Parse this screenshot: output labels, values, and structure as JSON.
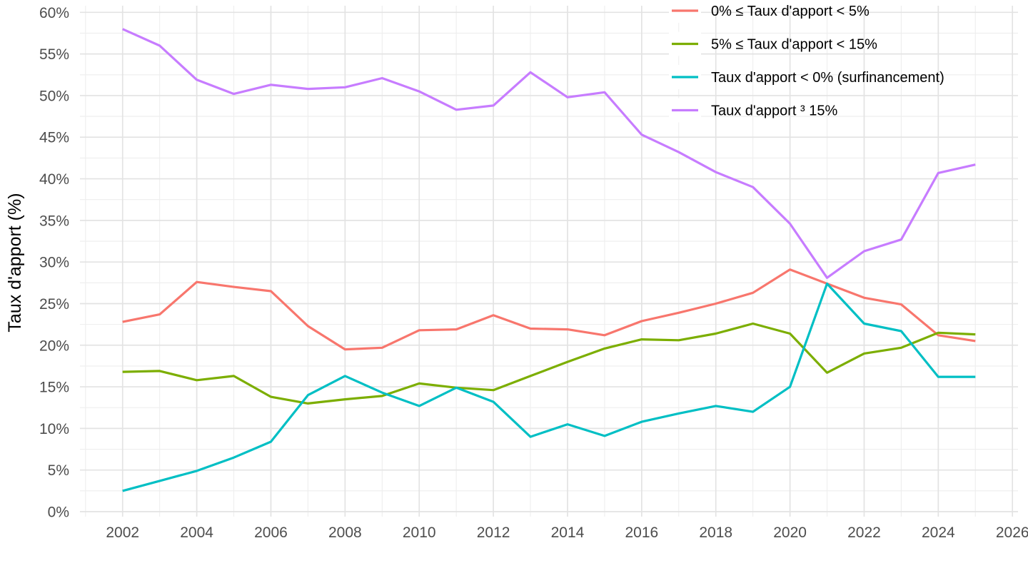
{
  "chart_data": {
    "type": "line",
    "title": "",
    "xlabel": "",
    "ylabel": "Taux d'apport (%)",
    "x": [
      2002,
      2003,
      2004,
      2005,
      2006,
      2007,
      2008,
      2009,
      2010,
      2011,
      2012,
      2013,
      2014,
      2015,
      2016,
      2017,
      2018,
      2019,
      2020,
      2021,
      2022,
      2023,
      2024,
      2025
    ],
    "series": [
      {
        "name": "0% ≤ Taux d'apport < 5%",
        "color": "#F8766D",
        "values": [
          22.8,
          23.7,
          27.6,
          27.0,
          26.5,
          22.3,
          19.5,
          19.7,
          21.8,
          21.9,
          23.6,
          22.0,
          21.9,
          21.2,
          22.9,
          23.9,
          25.0,
          26.3,
          29.1,
          27.4,
          25.7,
          24.9,
          21.2,
          20.5
        ]
      },
      {
        "name": "5% ≤ Taux d'apport < 15%",
        "color": "#7CAE00",
        "values": [
          16.8,
          16.9,
          15.8,
          16.3,
          13.8,
          13.0,
          13.5,
          13.9,
          15.4,
          14.9,
          14.6,
          16.3,
          18.0,
          19.6,
          20.7,
          20.6,
          21.4,
          22.6,
          21.4,
          16.7,
          19.0,
          19.7,
          21.5,
          21.3
        ]
      },
      {
        "name": "Taux d'apport < 0% (surfinancement)",
        "color": "#00BFC4",
        "values": [
          2.5,
          3.7,
          4.9,
          6.5,
          8.4,
          14.0,
          16.3,
          14.3,
          12.7,
          14.9,
          13.2,
          9.0,
          10.5,
          9.1,
          10.8,
          11.8,
          12.7,
          12.0,
          15.0,
          27.4,
          22.6,
          21.7,
          16.2,
          16.2
        ]
      },
      {
        "name": "Taux d'apport ³ 15%",
        "color": "#C77CFF",
        "values": [
          58.0,
          56.0,
          51.9,
          50.2,
          51.3,
          50.8,
          51.0,
          52.1,
          50.5,
          48.3,
          48.8,
          52.8,
          49.8,
          50.4,
          45.3,
          43.2,
          40.8,
          39.0,
          34.6,
          28.1,
          31.3,
          32.7,
          40.7,
          41.7
        ]
      }
    ],
    "y_ticks": {
      "values": [
        0,
        5,
        10,
        15,
        20,
        25,
        30,
        35,
        40,
        45,
        50,
        55,
        60
      ],
      "labels": [
        "0%",
        "5%",
        "10%",
        "15%",
        "20%",
        "25%",
        "30%",
        "35%",
        "40%",
        "45%",
        "50%",
        "55%",
        "60%"
      ]
    },
    "x_ticks": {
      "values": [
        2002,
        2004,
        2006,
        2008,
        2010,
        2012,
        2014,
        2016,
        2018,
        2020,
        2022,
        2024,
        2026
      ],
      "labels": [
        "2002",
        "2004",
        "2006",
        "2008",
        "2010",
        "2012",
        "2014",
        "2016",
        "2018",
        "2020",
        "2022",
        "2024",
        "2026"
      ]
    },
    "x_range": [
      2000.85,
      2026.15
    ],
    "y_range": [
      -0.6,
      60.8
    ],
    "y_minor_step": 2.5,
    "x_minor_years": [
      2001,
      2003,
      2005,
      2007,
      2009,
      2011,
      2013,
      2015,
      2017,
      2019,
      2021,
      2023,
      2025
    ],
    "grid": {
      "major_color": "#e3e3e3",
      "minor_color": "#eeeeee"
    },
    "legend_position": "top-right",
    "line_width": 3.2
  },
  "styles": {
    "background": "#ffffff",
    "tick_label_color": "#4d4d4d",
    "axis_title_color": "#000000",
    "legend_text_color": "#000000",
    "legend_key_fill": "#ffffff"
  }
}
